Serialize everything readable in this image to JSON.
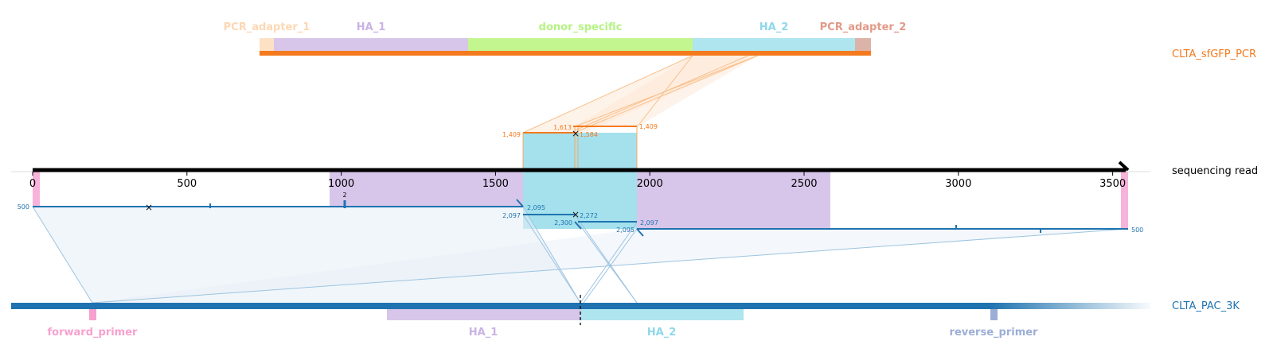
{
  "top_target": {
    "name": "CLTA_sfGFP_PCR",
    "features": [
      {
        "label": "PCR_adapter_1",
        "color": "#fdd7b4"
      },
      {
        "label": "HA_1",
        "color": "#c9b3e4"
      },
      {
        "label": "donor_specific",
        "color": "#bbf78b"
      },
      {
        "label": "HA_2",
        "color": "#a4e1ed"
      },
      {
        "label": "PCR_adapter_2",
        "color": "#d9ab9f"
      }
    ],
    "label_colors": [
      "#fdd7b4",
      "#c9b3e4",
      "#bbf78b",
      "#9bdcee",
      "#e29a88"
    ],
    "line_color": "#f47a1e"
  },
  "read": {
    "name": "sequencing read",
    "axis_ticks": [
      "0",
      "500",
      "1000",
      "1500",
      "2000",
      "2500",
      "3000",
      "3500"
    ],
    "tick_values": [
      0,
      500,
      1000,
      1500,
      2000,
      2500,
      3000,
      3500
    ],
    "read_length": 3550,
    "small_mark_label": "2",
    "alignment_labels": {
      "top_left": "1,409",
      "top_mid_1": "1,613",
      "top_mid_2": "1,584",
      "top_right": "1,409",
      "a_start": "500",
      "a_mid_end": "2,095",
      "b_left": "2,097",
      "b_right": "2,272",
      "c_left": "2,300",
      "c_right": "2,097",
      "d_left": "2,095",
      "d_end": "500"
    }
  },
  "bottom_target": {
    "name": "CLTA_PAC_3K",
    "features": [
      {
        "label": "forward_primer",
        "color": "#f7a1cf"
      },
      {
        "label": "HA_1",
        "color": "#c9b3e4"
      },
      {
        "label": "HA_2",
        "color": "#a4e1ed"
      },
      {
        "label": "reverse_primer",
        "color": "#9daed6"
      }
    ],
    "line_color": "#1f73b0"
  }
}
